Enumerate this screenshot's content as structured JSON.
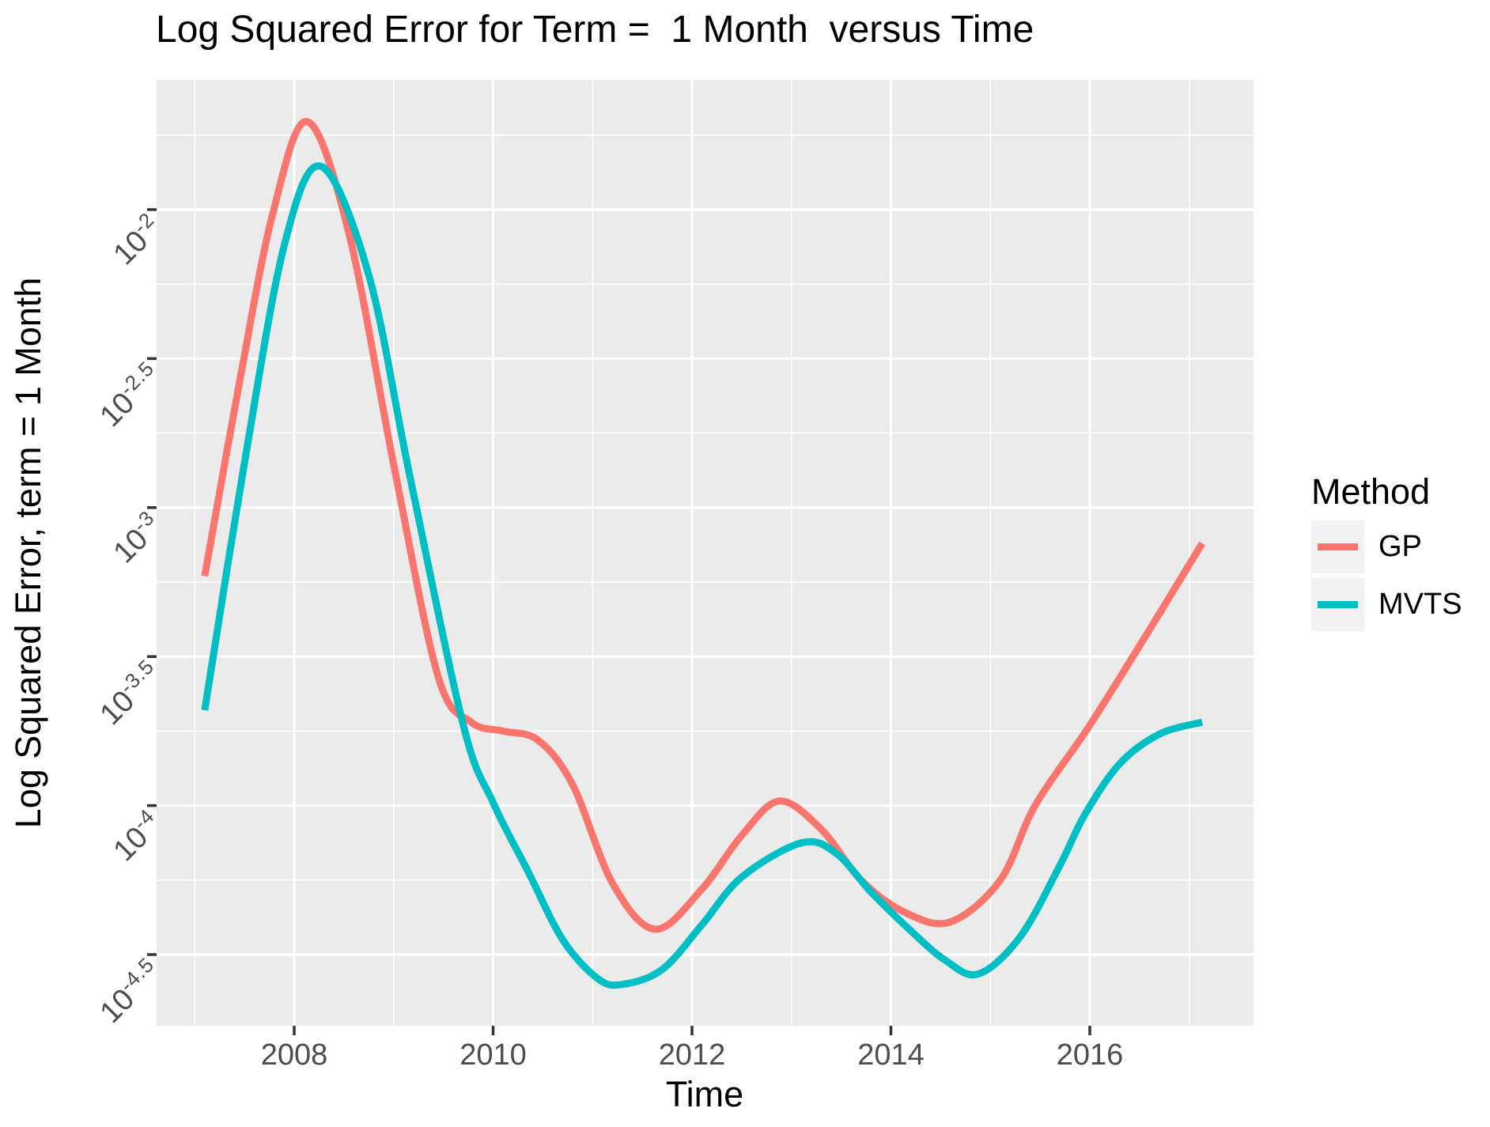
{
  "title": "Log Squared Error for Term =  1 Month  versus Time",
  "x_axis": {
    "label": "Time",
    "tick_labels": [
      "2008",
      "2010",
      "2012",
      "2014",
      "2016"
    ],
    "tick_years": [
      2008,
      2010,
      2012,
      2014,
      2016
    ],
    "minor_years": [
      2007,
      2009,
      2011,
      2013,
      2015,
      2017
    ]
  },
  "y_axis": {
    "label": "Log Squared Error, term = 1 Month",
    "tick_base": "10",
    "tick_exponents": [
      "-2",
      "-2.5",
      "-3",
      "-3.5",
      "-4",
      "-4.5"
    ],
    "minor_exponents": [
      -1.75,
      -2.25,
      -2.75,
      -3.25,
      -3.75,
      -4.25,
      -4.75
    ]
  },
  "legend": {
    "title": "Method",
    "entries": [
      {
        "label": "GP",
        "color": "#F8766D"
      },
      {
        "label": "MVTS",
        "color": "#00BFC4"
      }
    ]
  },
  "style": {
    "panel_bg": "#EBEBEB",
    "grid_color": "#FFFFFF",
    "tick_text_color": "#4D4D4D",
    "tick_mark_color": "#333333",
    "legend_key_bg": "#F2F2F2",
    "line_width": 9
  },
  "chart_data": {
    "type": "line",
    "title": "Log Squared Error for Term =  1 Month  versus Time",
    "xlabel": "Time",
    "ylabel": "Log Squared Error, term = 1 Month",
    "x_range": [
      2006.62,
      2017.65
    ],
    "y_scale": "log10",
    "y_range_log10": [
      -4.74,
      -1.56
    ],
    "y_major_ticks_log10": [
      -2,
      -2.5,
      -3,
      -3.5,
      -4,
      -4.5
    ],
    "grid": true,
    "legend_position": "right",
    "points_format": "[year, log10(squared_error)]",
    "series": [
      {
        "name": "GP",
        "color": "#F8766D",
        "points": [
          [
            2007.1,
            -3.23
          ],
          [
            2007.45,
            -2.58
          ],
          [
            2007.78,
            -2.02
          ],
          [
            2008.13,
            -1.705
          ],
          [
            2008.55,
            -2.08
          ],
          [
            2009.02,
            -2.89
          ],
          [
            2009.45,
            -3.57
          ],
          [
            2009.78,
            -3.72
          ],
          [
            2010.1,
            -3.75
          ],
          [
            2010.45,
            -3.78
          ],
          [
            2010.8,
            -3.93
          ],
          [
            2011.2,
            -4.26
          ],
          [
            2011.63,
            -4.415
          ],
          [
            2012.1,
            -4.28
          ],
          [
            2012.5,
            -4.1
          ],
          [
            2012.88,
            -3.985
          ],
          [
            2013.3,
            -4.08
          ],
          [
            2013.7,
            -4.25
          ],
          [
            2014.15,
            -4.36
          ],
          [
            2014.6,
            -4.39
          ],
          [
            2015.1,
            -4.25
          ],
          [
            2015.45,
            -4.0
          ],
          [
            2016.0,
            -3.73
          ],
          [
            2016.6,
            -3.41
          ],
          [
            2017.13,
            -3.12
          ]
        ]
      },
      {
        "name": "MVTS",
        "color": "#00BFC4",
        "points": [
          [
            2007.1,
            -3.68
          ],
          [
            2007.5,
            -2.85
          ],
          [
            2007.9,
            -2.12
          ],
          [
            2008.27,
            -1.855
          ],
          [
            2008.75,
            -2.22
          ],
          [
            2009.16,
            -2.89
          ],
          [
            2009.7,
            -3.73
          ],
          [
            2010.0,
            -3.99
          ],
          [
            2010.35,
            -4.22
          ],
          [
            2010.7,
            -4.45
          ],
          [
            2011.05,
            -4.58
          ],
          [
            2011.3,
            -4.6
          ],
          [
            2011.7,
            -4.55
          ],
          [
            2012.1,
            -4.4
          ],
          [
            2012.5,
            -4.24
          ],
          [
            2013.1,
            -4.125
          ],
          [
            2013.45,
            -4.16
          ],
          [
            2013.8,
            -4.29
          ],
          [
            2014.2,
            -4.42
          ],
          [
            2014.55,
            -4.52
          ],
          [
            2014.88,
            -4.565
          ],
          [
            2015.3,
            -4.44
          ],
          [
            2015.7,
            -4.2
          ],
          [
            2015.95,
            -4.03
          ],
          [
            2016.3,
            -3.86
          ],
          [
            2016.7,
            -3.76
          ],
          [
            2017.13,
            -3.72
          ]
        ]
      }
    ]
  }
}
